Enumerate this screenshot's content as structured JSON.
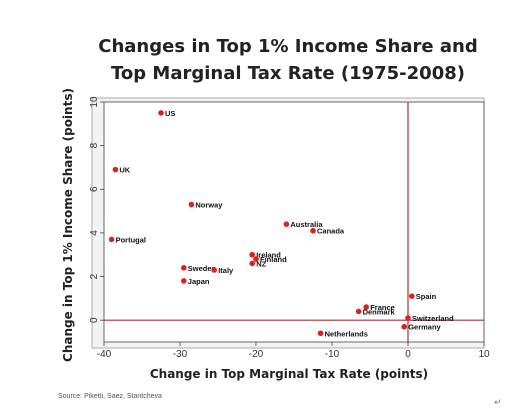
{
  "chart_data": {
    "type": "scatter",
    "title_line1": "Changes in Top 1% Income Share and",
    "title_line2": "Top Marginal Tax Rate (1975-2008)",
    "xlabel": "Change in Top Marginal Tax Rate (points)",
    "ylabel": "Change in Top 1% Income Share (points)",
    "xlim": [
      -40,
      10
    ],
    "ylim": [
      -1,
      10
    ],
    "x_ticks": [
      -40,
      -30,
      -20,
      -10,
      0,
      10
    ],
    "y_ticks": [
      0,
      2,
      4,
      6,
      8,
      10
    ],
    "reference_lines": {
      "x": 0,
      "y": 0
    },
    "point_color": "#e02020",
    "line_color": "#a83232",
    "points": [
      {
        "label": "US",
        "x": -32.5,
        "y": 9.5
      },
      {
        "label": "UK",
        "x": -38.5,
        "y": 6.9
      },
      {
        "label": "Norway",
        "x": -28.5,
        "y": 5.3
      },
      {
        "label": "Portugal",
        "x": -39,
        "y": 3.7
      },
      {
        "label": "Australia",
        "x": -16,
        "y": 4.4
      },
      {
        "label": "Canada",
        "x": -12.5,
        "y": 4.1
      },
      {
        "label": "Ireland",
        "x": -20.5,
        "y": 3.0
      },
      {
        "label": "Finland",
        "x": -20,
        "y": 2.8
      },
      {
        "label": "NZ",
        "x": -20.5,
        "y": 2.6
      },
      {
        "label": "Sweden",
        "x": -29.5,
        "y": 2.4
      },
      {
        "label": "Italy",
        "x": -25.5,
        "y": 2.3
      },
      {
        "label": "Japan",
        "x": -29.5,
        "y": 1.8
      },
      {
        "label": "Spain",
        "x": 0.5,
        "y": 1.1
      },
      {
        "label": "France",
        "x": -5.5,
        "y": 0.6
      },
      {
        "label": "Denmark",
        "x": -6.5,
        "y": 0.4
      },
      {
        "label": "Switzerland",
        "x": 0,
        "y": 0.1
      },
      {
        "label": "Germany",
        "x": -0.5,
        "y": -0.3
      },
      {
        "label": "Netherlands",
        "x": -11.5,
        "y": -0.6
      }
    ],
    "source": "Source: Piketti, Saez, Stantcheva"
  },
  "page": {
    "corner_mark": "↵"
  }
}
